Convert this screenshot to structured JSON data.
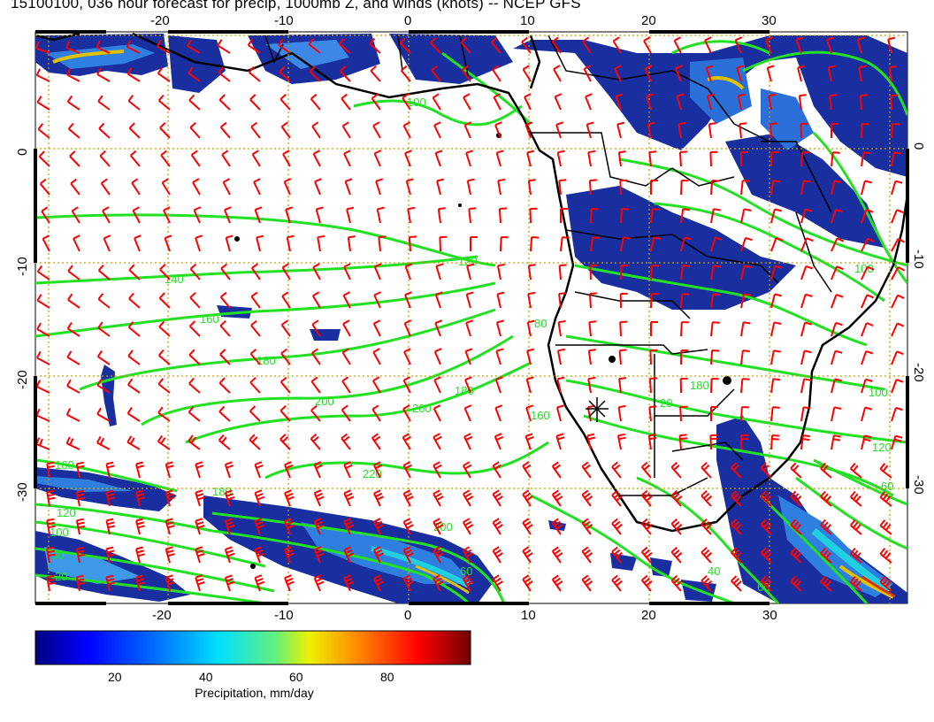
{
  "title": "15100100, 036 hour forecast for precip, 1000mb Z, and winds (knots) -- NCEP GFS",
  "map": {
    "lon_range": [
      -31,
      41
    ],
    "lat_range": [
      -40,
      10
    ],
    "lon_ticks": [
      "-20",
      "-10",
      "0",
      "10",
      "20",
      "30"
    ],
    "lat_ticks": [
      "0",
      "-10",
      "-20",
      "-30"
    ],
    "grid": "dotted",
    "colors": {
      "contour": "#22e022",
      "barb": "#ff0000",
      "coast": "#000000",
      "grid": "#c8a000",
      "precip_low": "#1a2f9f",
      "precip_mid": "#2f7fe0"
    }
  },
  "contour_labels": [
    "120",
    "140",
    "160",
    "180",
    "200",
    "220",
    "120",
    "100",
    "160",
    "180",
    "200",
    "120",
    "100",
    "80",
    "60",
    "40",
    "20"
  ],
  "colorbar": {
    "title": "Precipitation, mm/day",
    "ticks": [
      "20",
      "40",
      "60",
      "80"
    ],
    "range": [
      0,
      98
    ],
    "stops": [
      "#000080",
      "#0000ff",
      "#0080ff",
      "#00ffff",
      "#80ff80",
      "#ffff00",
      "#ff8000",
      "#ff0000",
      "#800000"
    ]
  }
}
